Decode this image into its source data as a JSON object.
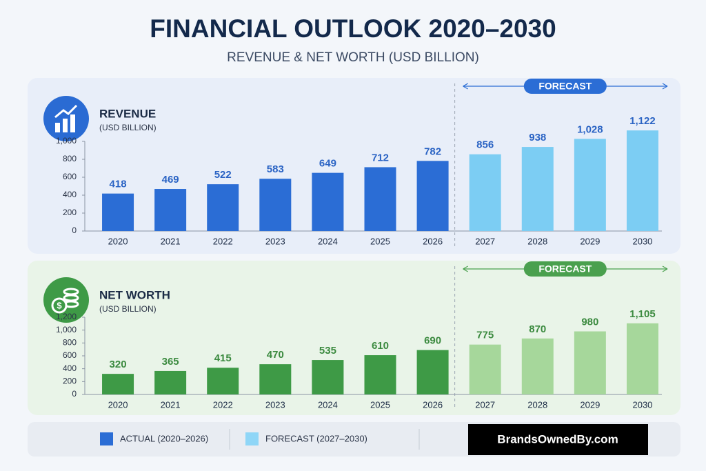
{
  "header": {
    "title": "FINANCIAL OUTLOOK 2020–2030",
    "subtitle": "REVENUE & NET WORTH (USD BILLION)"
  },
  "chart_data": [
    {
      "type": "bar",
      "title": "REVENUE",
      "subtitle": "(USD BILLION)",
      "annotation": "FORECAST",
      "categories": [
        "2020",
        "2021",
        "2022",
        "2023",
        "2024",
        "2025",
        "2026",
        "2027",
        "2028",
        "2029",
        "2030"
      ],
      "series": [
        {
          "color": "#2b6dd5",
          "values": [
            418,
            469,
            522,
            583,
            649,
            712,
            782,
            null,
            null,
            null,
            null
          ],
          "value_labels": [
            "418",
            "469",
            "522",
            "583",
            "649",
            "712",
            "782",
            null,
            null,
            null,
            null
          ]
        },
        {
          "color": "#7ccdf3",
          "values": [
            null,
            null,
            null,
            null,
            null,
            null,
            null,
            856,
            938,
            1028,
            1122
          ],
          "value_labels": [
            null,
            null,
            null,
            null,
            null,
            null,
            null,
            "856",
            "938",
            "1,028",
            "1,122"
          ]
        }
      ],
      "ylim": [
        0,
        1000
      ],
      "yticks": [
        0,
        200,
        400,
        600,
        800,
        {
          "value": 1000,
          "label": "1,000"
        }
      ],
      "label_color": "#2a63c4",
      "accent": "#2b6dd5"
    },
    {
      "type": "bar",
      "title": "NET WORTH",
      "subtitle": "(USD BILLION)",
      "annotation": "FORECAST",
      "categories": [
        "2020",
        "2021",
        "2022",
        "2023",
        "2024",
        "2025",
        "2026",
        "2027",
        "2028",
        "2029",
        "2030"
      ],
      "series": [
        {
          "color": "#3e9a46",
          "values": [
            320,
            365,
            415,
            470,
            535,
            610,
            690,
            null,
            null,
            null,
            null
          ],
          "value_labels": [
            "320",
            "365",
            "415",
            "470",
            "535",
            "610",
            "690",
            null,
            null,
            null,
            null
          ]
        },
        {
          "color": "#a6d79b",
          "values": [
            null,
            null,
            null,
            null,
            null,
            null,
            null,
            775,
            870,
            980,
            1105
          ],
          "value_labels": [
            null,
            null,
            null,
            null,
            null,
            null,
            null,
            "775",
            "870",
            "980",
            "1,105"
          ]
        }
      ],
      "ylim": [
        0,
        1200
      ],
      "yticks": [
        0,
        200,
        400,
        600,
        800,
        {
          "value": 1000,
          "label": "1,000"
        },
        {
          "value": 1200,
          "label": "1,200"
        }
      ],
      "label_color": "#3b8a3f",
      "accent": "#4aa04e"
    }
  ],
  "legend": [
    {
      "name": "ACTUAL (2020–2026)",
      "color": "#2b6dd5"
    },
    {
      "name": "FORECAST (2027–2030)",
      "color": "#8fd6f7"
    }
  ],
  "footer": {
    "brand": "BrandsOwnedBy.com"
  }
}
